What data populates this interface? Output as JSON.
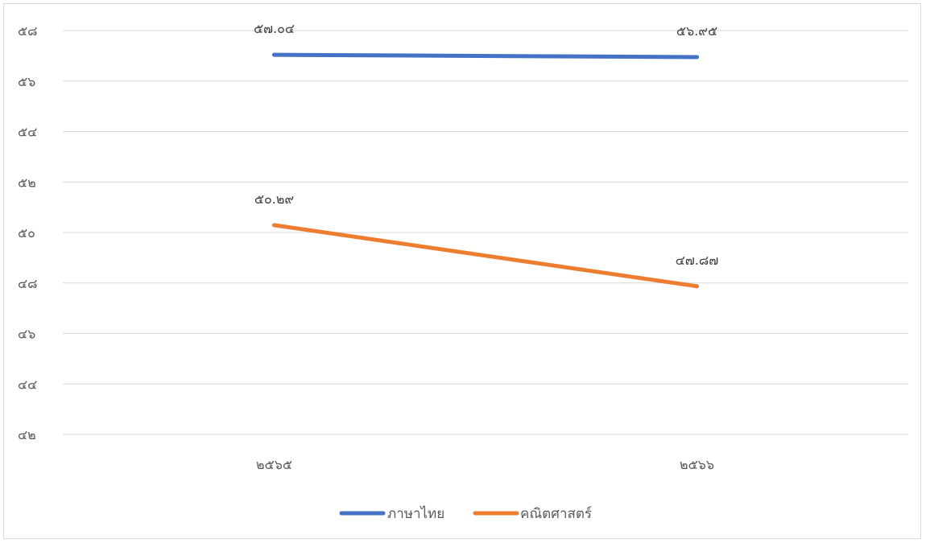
{
  "chart_data": {
    "type": "line",
    "title": "",
    "xlabel": "",
    "ylabel": "",
    "categories": [
      "๒๕๖๕",
      "๒๕๖๖"
    ],
    "ylim": [
      42,
      58
    ],
    "yticks": [
      42,
      44,
      46,
      48,
      50,
      52,
      54,
      56,
      58
    ],
    "ytick_labels": [
      "๔๒",
      "๔๔",
      "๔๖",
      "๔๘",
      "๕๐",
      "๕๒",
      "๕๔",
      "๕๖",
      "๕๘"
    ],
    "grid": true,
    "legend_position": "bottom",
    "series": [
      {
        "name": "ภาษาไทย",
        "color": "#4472c4",
        "values": [
          57.04,
          56.95
        ],
        "labels": [
          "๕๗.๐๔",
          "๕๖.๙๕"
        ]
      },
      {
        "name": "คณิตศาสตร์",
        "color": "#ed7d31",
        "values": [
          50.29,
          47.87
        ],
        "labels": [
          "๕๐.๒๙",
          "๔๗.๘๗"
        ]
      }
    ]
  }
}
